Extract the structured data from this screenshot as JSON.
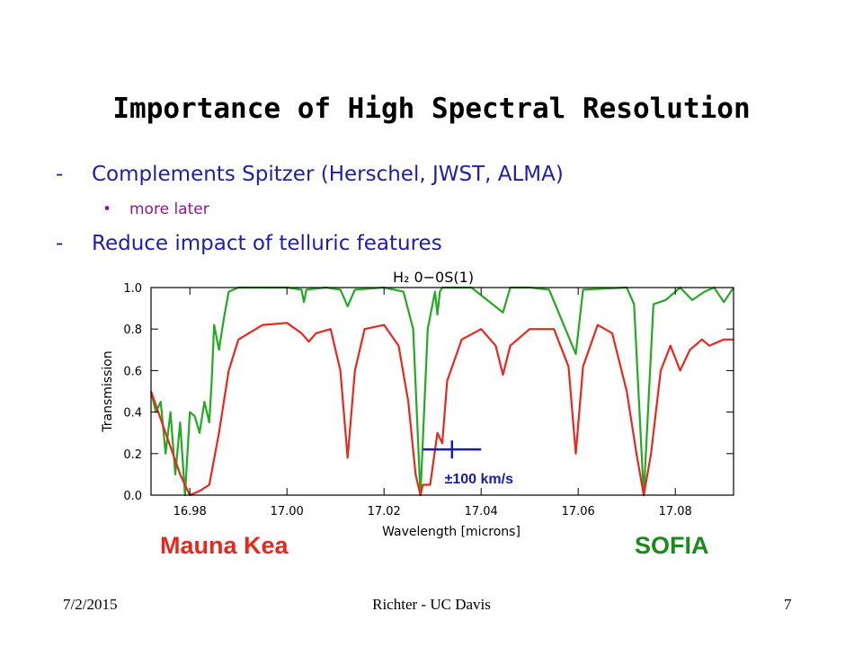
{
  "slide": {
    "title": "Importance of High Spectral Resolution",
    "bullets": [
      {
        "marker": "-",
        "text": "Complements Spitzer (Herschel, JWST, ALMA)"
      },
      {
        "marker": "•",
        "text": "more later"
      },
      {
        "marker": "-",
        "text": "Reduce impact of telluric features"
      }
    ],
    "footer": {
      "date": "7/2/2015",
      "center": "Richter - UC Davis",
      "page": "7"
    },
    "site_labels": {
      "left": "Mauna Kea",
      "right": "SOFIA"
    }
  },
  "chart_data": {
    "type": "line",
    "title": "H₂ 0−0S(1)",
    "xlabel": "Wavelength [microns]",
    "ylabel": "Transmission",
    "xlim": [
      16.972,
      17.092
    ],
    "ylim": [
      0.0,
      1.0
    ],
    "x_ticks": [
      "16.98",
      "17.00",
      "17.02",
      "17.04",
      "17.06",
      "17.08"
    ],
    "y_ticks": [
      "0.0",
      "0.2",
      "0.4",
      "0.6",
      "0.8",
      "1.0"
    ],
    "annotation": {
      "text": "±100 km/s",
      "x_center": 17.034,
      "y": 0.22,
      "half_width": 0.006
    },
    "series": [
      {
        "name": "Mauna Kea",
        "color": "#e8281e",
        "x": [
          16.972,
          16.975,
          16.978,
          16.98,
          16.982,
          16.984,
          16.986,
          16.988,
          16.99,
          16.995,
          17.0,
          17.003,
          17.0045,
          17.006,
          17.009,
          17.011,
          17.0125,
          17.014,
          17.016,
          17.02,
          17.023,
          17.025,
          17.0265,
          17.0275,
          17.028,
          17.0295,
          17.031,
          17.032,
          17.033,
          17.036,
          17.04,
          17.043,
          17.0445,
          17.046,
          17.05,
          17.055,
          17.058,
          17.0595,
          17.061,
          17.064,
          17.067,
          17.07,
          17.072,
          17.0735,
          17.075,
          17.077,
          17.079,
          17.081,
          17.083,
          17.0855,
          17.087,
          17.09,
          17.092
        ],
        "y": [
          0.5,
          0.3,
          0.1,
          0.0,
          0.02,
          0.05,
          0.3,
          0.6,
          0.75,
          0.82,
          0.83,
          0.78,
          0.74,
          0.78,
          0.8,
          0.6,
          0.18,
          0.6,
          0.8,
          0.82,
          0.72,
          0.45,
          0.1,
          0.0,
          0.05,
          0.05,
          0.3,
          0.25,
          0.55,
          0.75,
          0.8,
          0.72,
          0.58,
          0.72,
          0.8,
          0.8,
          0.62,
          0.2,
          0.62,
          0.82,
          0.78,
          0.5,
          0.2,
          0.0,
          0.2,
          0.6,
          0.72,
          0.6,
          0.7,
          0.75,
          0.72,
          0.75,
          0.75
        ]
      },
      {
        "name": "SOFIA",
        "color": "#22aa22",
        "x": [
          16.972,
          16.973,
          16.974,
          16.975,
          16.976,
          16.977,
          16.978,
          16.979,
          16.98,
          16.981,
          16.982,
          16.983,
          16.984,
          16.9845,
          16.985,
          16.986,
          16.987,
          16.988,
          16.99,
          17.0,
          17.003,
          17.0035,
          17.004,
          17.008,
          17.011,
          17.0125,
          17.014,
          17.02,
          17.024,
          17.026,
          17.0275,
          17.029,
          17.0305,
          17.031,
          17.0315,
          17.032,
          17.038,
          17.0445,
          17.046,
          17.05,
          17.054,
          17.0595,
          17.061,
          17.07,
          17.0715,
          17.0735,
          17.0755,
          17.078,
          17.081,
          17.0835,
          17.086,
          17.088,
          17.09,
          17.092
        ],
        "y": [
          0.5,
          0.4,
          0.45,
          0.2,
          0.4,
          0.1,
          0.35,
          0.0,
          0.4,
          0.38,
          0.3,
          0.45,
          0.35,
          0.55,
          0.82,
          0.7,
          0.85,
          0.98,
          1.0,
          1.0,
          0.99,
          0.93,
          0.99,
          1.0,
          0.99,
          0.91,
          0.99,
          1.0,
          0.98,
          0.8,
          0.0,
          0.8,
          0.98,
          0.87,
          0.98,
          1.0,
          1.0,
          0.88,
          1.0,
          1.0,
          0.99,
          0.68,
          0.99,
          1.0,
          0.92,
          0.0,
          0.92,
          0.94,
          1.0,
          0.94,
          0.98,
          1.0,
          0.93,
          1.0
        ]
      }
    ]
  }
}
